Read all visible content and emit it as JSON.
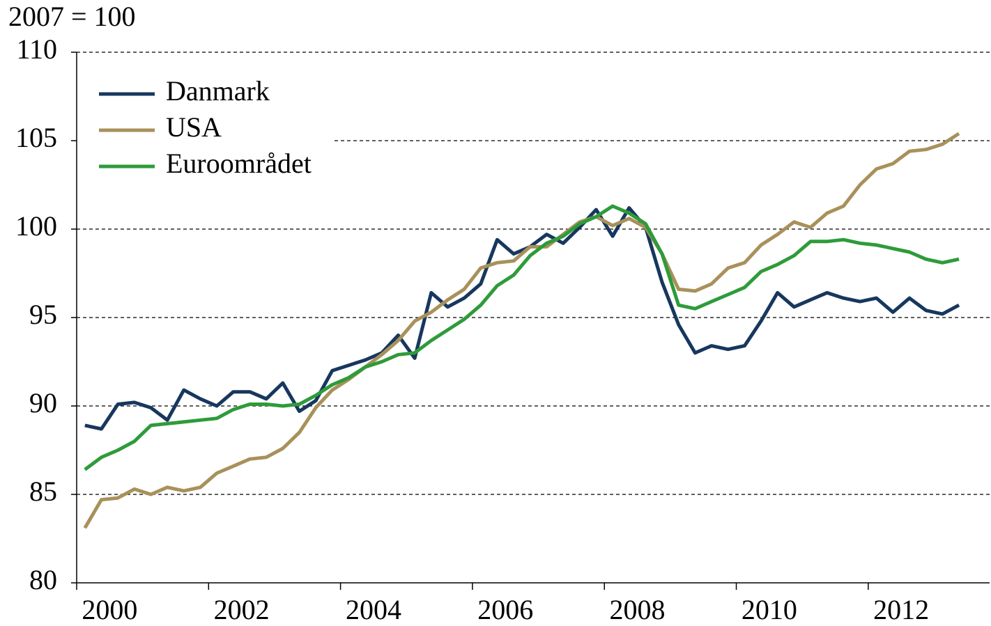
{
  "chart_data": {
    "type": "line",
    "y_label": "2007 = 100",
    "x": [
      2000.125,
      2000.375,
      2000.625,
      2000.875,
      2001.125,
      2001.375,
      2001.625,
      2001.875,
      2002.125,
      2002.375,
      2002.625,
      2002.875,
      2003.125,
      2003.375,
      2003.625,
      2003.875,
      2004.125,
      2004.375,
      2004.625,
      2004.875,
      2005.125,
      2005.375,
      2005.625,
      2005.875,
      2006.125,
      2006.375,
      2006.625,
      2006.875,
      2007.125,
      2007.375,
      2007.625,
      2007.875,
      2008.125,
      2008.375,
      2008.625,
      2008.875,
      2009.125,
      2009.375,
      2009.625,
      2009.875,
      2010.125,
      2010.375,
      2010.625,
      2010.875,
      2011.125,
      2011.375,
      2011.625,
      2011.875,
      2012.125,
      2012.375,
      2012.625,
      2012.875,
      2013.125,
      2013.375
    ],
    "series": [
      {
        "name": "Danmark",
        "color": "#17375e",
        "values": [
          88.9,
          88.7,
          90.1,
          90.2,
          89.9,
          89.2,
          90.9,
          90.4,
          90.0,
          90.8,
          90.8,
          90.4,
          91.3,
          89.7,
          90.3,
          92.0,
          92.3,
          92.6,
          93.0,
          94.0,
          92.7,
          96.4,
          95.6,
          96.1,
          96.9,
          99.4,
          98.6,
          99.0,
          99.7,
          99.2,
          100.1,
          101.1,
          99.6,
          101.2,
          100.1,
          97.0,
          94.6,
          93.0,
          93.4,
          93.2,
          93.4,
          94.8,
          96.4,
          95.6,
          96.0,
          96.4,
          96.1,
          95.9,
          96.1,
          95.3,
          96.1,
          95.4,
          95.2,
          95.7
        ]
      },
      {
        "name": "USA",
        "color": "#a8915a",
        "values": [
          83.1,
          84.7,
          84.8,
          85.3,
          85.0,
          85.4,
          85.2,
          85.4,
          86.2,
          86.6,
          87.0,
          87.1,
          87.6,
          88.5,
          89.9,
          90.9,
          91.5,
          92.2,
          92.9,
          93.7,
          94.8,
          95.3,
          96.0,
          96.6,
          97.8,
          98.1,
          98.2,
          99.0,
          99.0,
          99.7,
          100.4,
          100.7,
          100.2,
          100.6,
          100.1,
          98.6,
          96.6,
          96.5,
          96.9,
          97.8,
          98.1,
          99.1,
          99.7,
          100.4,
          100.1,
          100.9,
          101.3,
          102.5,
          103.4,
          103.7,
          104.4,
          104.5,
          104.8,
          105.4
        ]
      },
      {
        "name": "Euroområdet",
        "color": "#2e9b3a",
        "values": [
          86.4,
          87.1,
          87.5,
          88.0,
          88.9,
          89.0,
          89.1,
          89.2,
          89.3,
          89.8,
          90.1,
          90.1,
          90.0,
          90.1,
          90.6,
          91.2,
          91.6,
          92.2,
          92.5,
          92.9,
          93.0,
          93.7,
          94.3,
          94.9,
          95.7,
          96.8,
          97.4,
          98.5,
          99.2,
          99.6,
          100.3,
          100.7,
          101.3,
          100.9,
          100.3,
          98.6,
          95.7,
          95.5,
          95.9,
          96.3,
          96.7,
          97.6,
          98.0,
          98.5,
          99.3,
          99.3,
          99.4,
          99.2,
          99.1,
          98.9,
          98.7,
          98.3,
          98.1,
          98.3
        ]
      }
    ],
    "xlim": [
      2000,
      2013.84
    ],
    "xticks": [
      2000,
      2002,
      2004,
      2006,
      2008,
      2010,
      2012
    ],
    "ylim": [
      80,
      110
    ],
    "yticks": [
      80,
      85,
      90,
      95,
      100,
      105,
      110
    ],
    "grid": true,
    "legend": "upper-left"
  }
}
